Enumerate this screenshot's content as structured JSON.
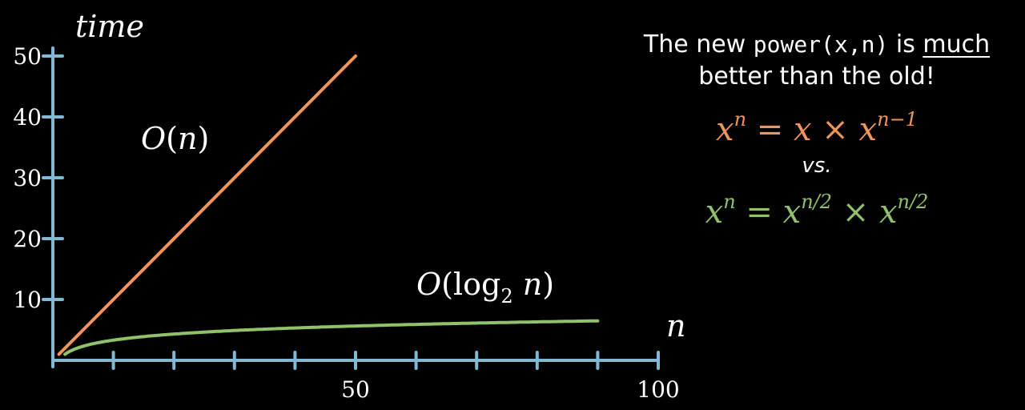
{
  "chart_data": {
    "type": "line",
    "xlabel": "n",
    "ylabel": "time",
    "xlim": [
      0,
      100
    ],
    "ylim": [
      0,
      50
    ],
    "x_ticks": [
      10,
      20,
      30,
      40,
      50,
      60,
      70,
      80,
      90,
      100
    ],
    "x_tick_labels": [
      {
        "value": 50,
        "label": "50"
      },
      {
        "value": 100,
        "label": "100"
      }
    ],
    "y_ticks": [
      10,
      20,
      30,
      40,
      50
    ],
    "y_tick_labels": [
      "10",
      "20",
      "30",
      "40",
      "50"
    ],
    "grid": false,
    "series": [
      {
        "name": "O(n)",
        "color": "#f0955a",
        "x": [
          1,
          50
        ],
        "y": [
          1,
          50
        ]
      },
      {
        "name": "O(log2 n)",
        "color": "#8fc26a",
        "function": "log2",
        "x": [
          2,
          5,
          10,
          20,
          30,
          40,
          50,
          60,
          70,
          80,
          90
        ],
        "y": [
          1,
          2.32,
          3.32,
          4.32,
          4.91,
          5.32,
          5.64,
          5.91,
          6.13,
          6.32,
          6.49
        ]
      }
    ]
  },
  "annotation": {
    "line1_pre": "The new ",
    "line1_code": "power(x,n)",
    "line1_mid": " is ",
    "line1_emph": "much",
    "line2": "better than the old!",
    "formula_old_color": "#f0955a",
    "formula_new_color": "#8fc26a",
    "vs": "vs."
  }
}
